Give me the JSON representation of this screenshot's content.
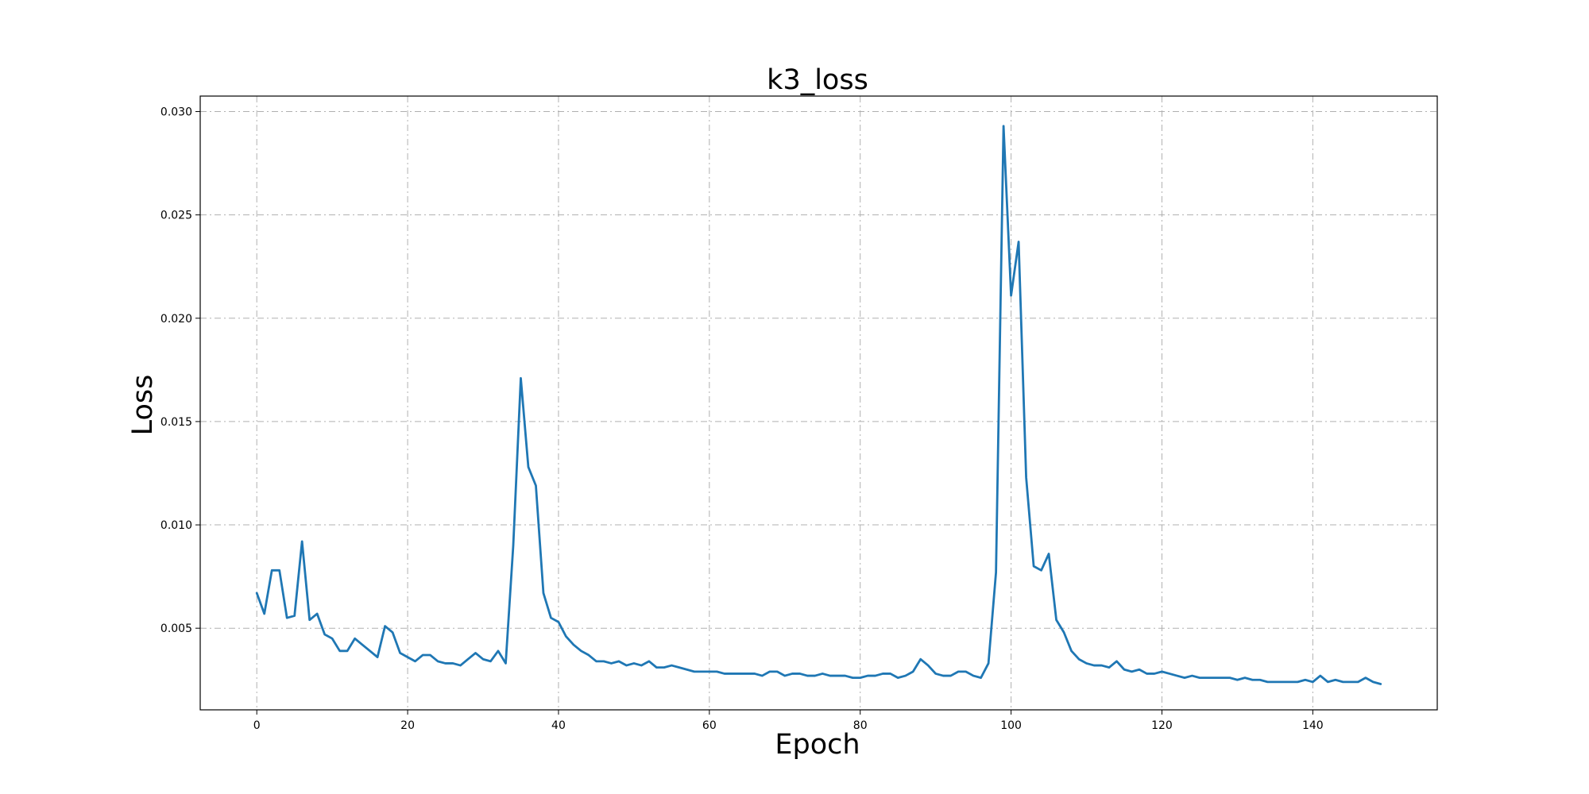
{
  "chart_data": {
    "type": "line",
    "title": "k3_loss",
    "xlabel": "Epoch",
    "ylabel": "Loss",
    "xlim": [
      -7.5,
      156.5
    ],
    "ylim": [
      0.00105,
      0.03075
    ],
    "xticks": [
      0,
      20,
      40,
      60,
      80,
      100,
      120,
      140
    ],
    "yticks": [
      0.005,
      0.01,
      0.015,
      0.02,
      0.025,
      0.03
    ],
    "xtick_labels": [
      "0",
      "20",
      "40",
      "60",
      "80",
      "100",
      "120",
      "140"
    ],
    "ytick_labels": [
      "0.005",
      "0.010",
      "0.015",
      "0.020",
      "0.025",
      "0.030"
    ],
    "grid": true,
    "series": [
      {
        "color": "#1f77b4",
        "x": [
          0,
          1,
          2,
          3,
          4,
          5,
          6,
          7,
          8,
          9,
          10,
          11,
          12,
          13,
          14,
          15,
          16,
          17,
          18,
          19,
          20,
          21,
          22,
          23,
          24,
          25,
          26,
          27,
          28,
          29,
          30,
          31,
          32,
          33,
          34,
          35,
          36,
          37,
          38,
          39,
          40,
          41,
          42,
          43,
          44,
          45,
          46,
          47,
          48,
          49,
          50,
          51,
          52,
          53,
          54,
          55,
          56,
          57,
          58,
          59,
          60,
          61,
          62,
          63,
          64,
          65,
          66,
          67,
          68,
          69,
          70,
          71,
          72,
          73,
          74,
          75,
          76,
          77,
          78,
          79,
          80,
          81,
          82,
          83,
          84,
          85,
          86,
          87,
          88,
          89,
          90,
          91,
          92,
          93,
          94,
          95,
          96,
          97,
          98,
          99,
          100,
          101,
          102,
          103,
          104,
          105,
          106,
          107,
          108,
          109,
          110,
          111,
          112,
          113,
          114,
          115,
          116,
          117,
          118,
          119,
          120,
          121,
          122,
          123,
          124,
          125,
          126,
          127,
          128,
          129,
          130,
          131,
          132,
          133,
          134,
          135,
          136,
          137,
          138,
          139,
          140,
          141,
          142,
          143,
          144,
          145,
          146,
          147,
          148,
          149
        ],
        "y": [
          0.0067,
          0.0057,
          0.0078,
          0.0078,
          0.0055,
          0.0056,
          0.0092,
          0.0054,
          0.0057,
          0.0047,
          0.0045,
          0.0039,
          0.0039,
          0.0045,
          0.0042,
          0.0039,
          0.0036,
          0.0051,
          0.0048,
          0.0038,
          0.0036,
          0.0034,
          0.0037,
          0.0037,
          0.0034,
          0.0033,
          0.0033,
          0.0032,
          0.0035,
          0.0038,
          0.0035,
          0.0034,
          0.0039,
          0.0033,
          0.009,
          0.0171,
          0.0128,
          0.0119,
          0.0067,
          0.0055,
          0.0053,
          0.0046,
          0.0042,
          0.0039,
          0.0037,
          0.0034,
          0.0034,
          0.0033,
          0.0034,
          0.0032,
          0.0033,
          0.0032,
          0.0034,
          0.0031,
          0.0031,
          0.0032,
          0.0031,
          0.003,
          0.0029,
          0.0029,
          0.0029,
          0.0029,
          0.0028,
          0.0028,
          0.0028,
          0.0028,
          0.0028,
          0.0027,
          0.0029,
          0.0029,
          0.0027,
          0.0028,
          0.0028,
          0.0027,
          0.0027,
          0.0028,
          0.0027,
          0.0027,
          0.0027,
          0.0026,
          0.0026,
          0.0027,
          0.0027,
          0.0028,
          0.0028,
          0.0026,
          0.0027,
          0.0029,
          0.0035,
          0.0032,
          0.0028,
          0.0027,
          0.0027,
          0.0029,
          0.0029,
          0.0027,
          0.0026,
          0.0033,
          0.0077,
          0.0293,
          0.0211,
          0.0237,
          0.0123,
          0.008,
          0.0078,
          0.0086,
          0.0054,
          0.0048,
          0.0039,
          0.0035,
          0.0033,
          0.0032,
          0.0032,
          0.0031,
          0.0034,
          0.003,
          0.0029,
          0.003,
          0.0028,
          0.0028,
          0.0029,
          0.0028,
          0.0027,
          0.0026,
          0.0027,
          0.0026,
          0.0026,
          0.0026,
          0.0026,
          0.0026,
          0.0025,
          0.0026,
          0.0025,
          0.0025,
          0.0024,
          0.0024,
          0.0024,
          0.0024,
          0.0024,
          0.0025,
          0.0024,
          0.0027,
          0.0024,
          0.0025,
          0.0024,
          0.0024,
          0.0024,
          0.0026,
          0.0024,
          0.0023
        ]
      }
    ]
  }
}
